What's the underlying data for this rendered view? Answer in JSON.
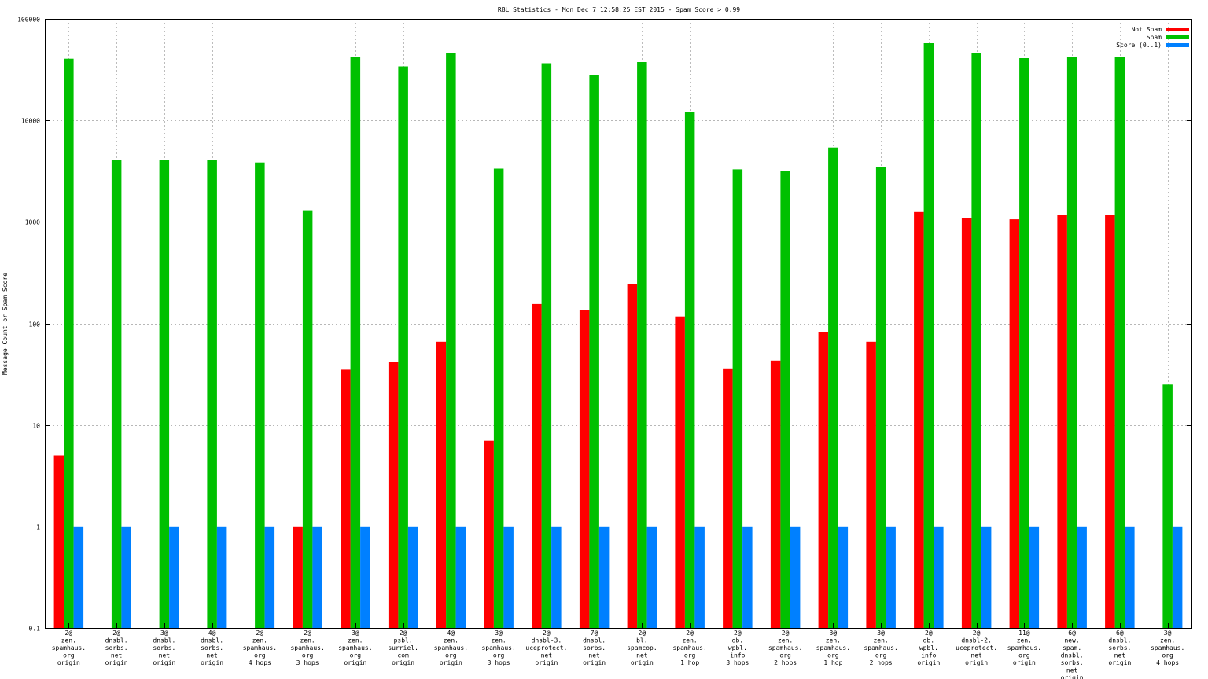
{
  "chart_data": {
    "type": "bar",
    "title": "RBL Statistics - Mon Dec  7 12:58:25 EST 2015 - Spam Score > 0.99",
    "ylabel": "Message Count or Spam Score",
    "xlabel": "",
    "yscale": "log",
    "ylim": [
      0.1,
      100000
    ],
    "yticks": [
      "0.1",
      "1",
      "10",
      "100",
      "1000",
      "10000",
      "100000"
    ],
    "grid": true,
    "legend_position": "top-right",
    "categories": [
      [
        "2@",
        "zen.",
        "spamhaus.",
        "org",
        "origin"
      ],
      [
        "2@",
        "dnsbl.",
        "sorbs.",
        "net",
        "origin"
      ],
      [
        "3@",
        "dnsbl.",
        "sorbs.",
        "net",
        "origin"
      ],
      [
        "4@",
        "dnsbl.",
        "sorbs.",
        "net",
        "origin"
      ],
      [
        "2@",
        "zen.",
        "spamhaus.",
        "org",
        "4 hops"
      ],
      [
        "2@",
        "zen.",
        "spamhaus.",
        "org",
        "3 hops"
      ],
      [
        "3@",
        "zen.",
        "spamhaus.",
        "org",
        "origin"
      ],
      [
        "2@",
        "psbl.",
        "surriel.",
        "com",
        "origin"
      ],
      [
        "4@",
        "zen.",
        "spamhaus.",
        "org",
        "origin"
      ],
      [
        "3@",
        "zen.",
        "spamhaus.",
        "org",
        "3 hops"
      ],
      [
        "2@",
        "dnsbl-3.",
        "uceprotect.",
        "net",
        "origin"
      ],
      [
        "7@",
        "dnsbl.",
        "sorbs.",
        "net",
        "origin"
      ],
      [
        "2@",
        "bl.",
        "spamcop.",
        "net",
        "origin"
      ],
      [
        "2@",
        "zen.",
        "spamhaus.",
        "org",
        "1 hop"
      ],
      [
        "2@",
        "db.",
        "wpbl.",
        "info",
        "3 hops"
      ],
      [
        "2@",
        "zen.",
        "spamhaus.",
        "org",
        "2 hops"
      ],
      [
        "3@",
        "zen.",
        "spamhaus.",
        "org",
        "1 hop"
      ],
      [
        "3@",
        "zen.",
        "spamhaus.",
        "org",
        "2 hops"
      ],
      [
        "2@",
        "db.",
        "wpbl.",
        "info",
        "origin"
      ],
      [
        "2@",
        "dnsbl-2.",
        "uceprotect.",
        "net",
        "origin"
      ],
      [
        "11@",
        "zen.",
        "spamhaus.",
        "org",
        "origin"
      ],
      [
        "6@",
        "new.",
        "spam.",
        "dnsbl.",
        "sorbs.",
        "net",
        "origin"
      ],
      [
        "6@",
        "dnsbl.",
        "sorbs.",
        "net",
        "origin"
      ],
      [
        "3@",
        "zen.",
        "spamhaus.",
        "org",
        "4 hops"
      ]
    ],
    "series": [
      {
        "name": "Not Spam",
        "color": "#ff0000",
        "values": [
          5,
          null,
          null,
          null,
          null,
          1,
          35,
          42,
          66,
          7,
          155,
          135,
          245,
          117,
          36,
          43,
          82,
          66,
          1250,
          1080,
          1060,
          1180,
          1180,
          null
        ]
      },
      {
        "name": "Spam",
        "color": "#00c000",
        "values": [
          40500,
          4050,
          4050,
          4050,
          3850,
          1300,
          42500,
          34000,
          46500,
          3350,
          36500,
          28000,
          37500,
          12200,
          3300,
          3150,
          5400,
          3450,
          57500,
          46500,
          41000,
          42000,
          42000,
          25
        ]
      },
      {
        "name": "Score (0..1)",
        "color": "#0080ff",
        "values": [
          1,
          1,
          1,
          1,
          1,
          1,
          1,
          1,
          1,
          1,
          1,
          1,
          1,
          1,
          1,
          1,
          1,
          1,
          1,
          1,
          1,
          1,
          1,
          1
        ]
      }
    ]
  }
}
